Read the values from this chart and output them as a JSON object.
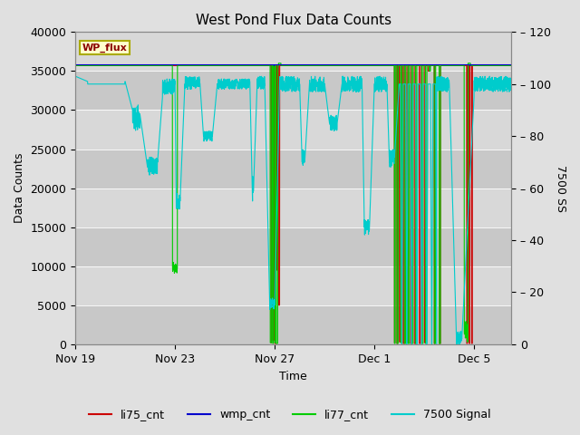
{
  "title": "West Pond Flux Data Counts",
  "xlabel": "Time",
  "ylabel_left": "Data Counts",
  "ylabel_right": "7500 SS",
  "ylim_left": [
    0,
    40000
  ],
  "ylim_right": [
    0,
    120
  ],
  "yticks_left": [
    0,
    5000,
    10000,
    15000,
    20000,
    25000,
    30000,
    35000,
    40000
  ],
  "yticks_right": [
    0,
    20,
    40,
    60,
    80,
    100,
    120
  ],
  "colors": {
    "li75_cnt": "#cc0000",
    "wmp_cnt": "#0000cc",
    "li77_cnt": "#00cc00",
    "7500 Signal": "#00cccc"
  },
  "x_tick_labels": [
    "Nov 19",
    "Nov 23",
    "Nov 27",
    "Dec 1",
    "Dec 5"
  ],
  "x_tick_positions": [
    0,
    4,
    8,
    12,
    16
  ],
  "xlim": [
    0,
    17.5
  ],
  "bg_outer": "#e0e0e0",
  "bg_inner": "#d0d0d0",
  "band_colors": [
    "#c8c8c8",
    "#d8d8d8"
  ],
  "grid_color": "#ffffff",
  "wmp_level": 35800,
  "li77_level": 35700,
  "li75_level": 35700
}
